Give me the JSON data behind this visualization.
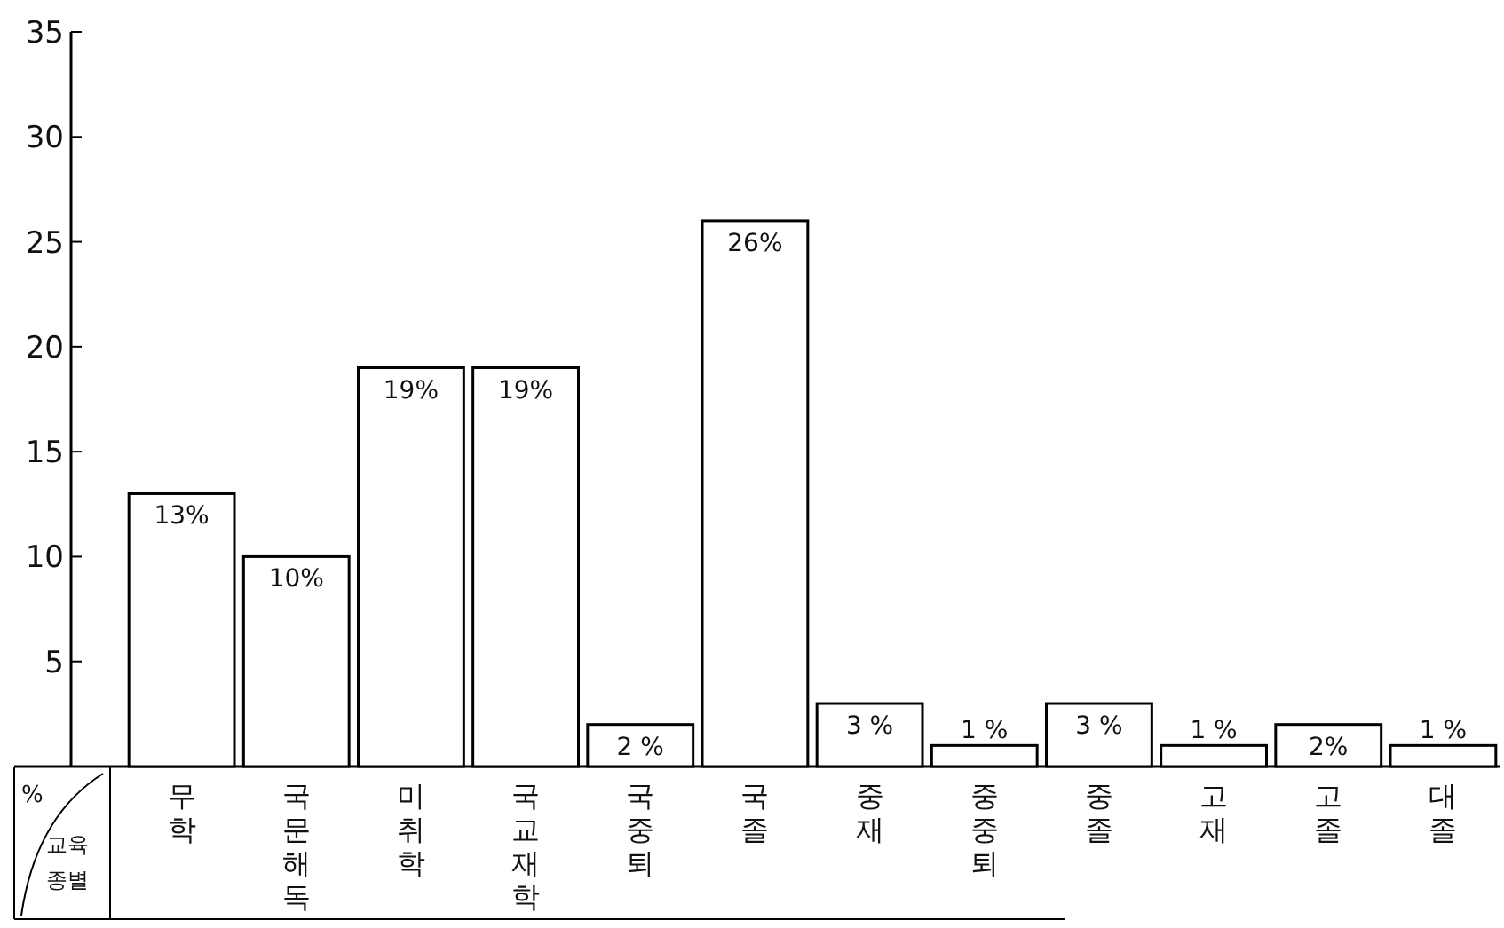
{
  "chart_data": {
    "type": "bar",
    "xlabel": "교육종별",
    "ylabel": "%",
    "categories": [
      "무학",
      "국문해독",
      "미취학",
      "국교재학",
      "국중퇴",
      "국졸",
      "중재",
      "중중퇴",
      "중졸",
      "고재",
      "고졸",
      "대졸"
    ],
    "values": [
      13,
      10,
      19,
      19,
      2,
      26,
      3,
      1,
      3,
      1,
      2,
      1
    ],
    "color": "#ffffff",
    "ylim": [
      0,
      35
    ],
    "yticks": [
      5,
      10,
      15,
      20,
      25,
      30,
      35
    ],
    "value_labels": [
      "13%",
      "10%",
      "19%",
      "19%",
      "2 %",
      "26%",
      "3 %",
      "1 %",
      "3 %",
      "1 %",
      "2%",
      "1 %"
    ],
    "grid": false
  }
}
